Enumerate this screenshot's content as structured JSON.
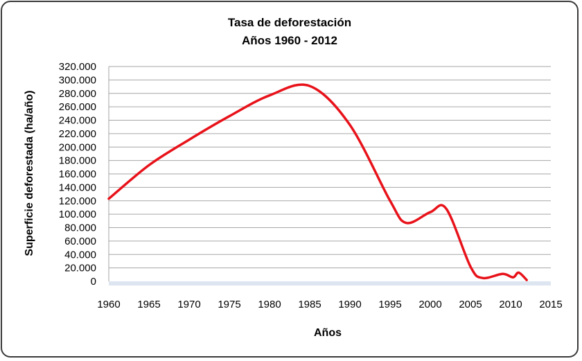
{
  "chart_data": {
    "type": "line",
    "title": "Tasa de deforestación",
    "subtitle": "Años 1960 - 2012",
    "xlabel": "Años",
    "ylabel": "Superficie deforestada (ha/año)",
    "xlim": [
      1960,
      2015
    ],
    "ylim": [
      0,
      320000
    ],
    "x_ticks": [
      1960,
      1965,
      1970,
      1975,
      1980,
      1985,
      1990,
      1995,
      2000,
      2005,
      2010,
      2015
    ],
    "y_ticks": [
      0,
      20000,
      40000,
      60000,
      80000,
      100000,
      120000,
      140000,
      160000,
      180000,
      200000,
      220000,
      240000,
      260000,
      280000,
      300000,
      320000
    ],
    "y_tick_labels": [
      "0",
      "20.000",
      "40.000",
      "60.000",
      "80.000",
      "100.000",
      "120.000",
      "140.000",
      "160.000",
      "180.000",
      "200.000",
      "220.000",
      "240.000",
      "260.000",
      "280.000",
      "300.000",
      "320.000"
    ],
    "grid": true,
    "legend": false,
    "series": [
      {
        "color": "#e8121a",
        "x": [
          1960,
          1965,
          1970,
          1975,
          1980,
          1985,
          1990,
          1995,
          1997,
          2000,
          2002,
          2005,
          2006.5,
          2009,
          2010.3,
          2011,
          2012
        ],
        "y": [
          123000,
          173000,
          211000,
          246000,
          277000,
          291000,
          233000,
          120000,
          87000,
          103000,
          108000,
          22000,
          5000,
          11000,
          6000,
          13000,
          2000
        ]
      }
    ]
  }
}
